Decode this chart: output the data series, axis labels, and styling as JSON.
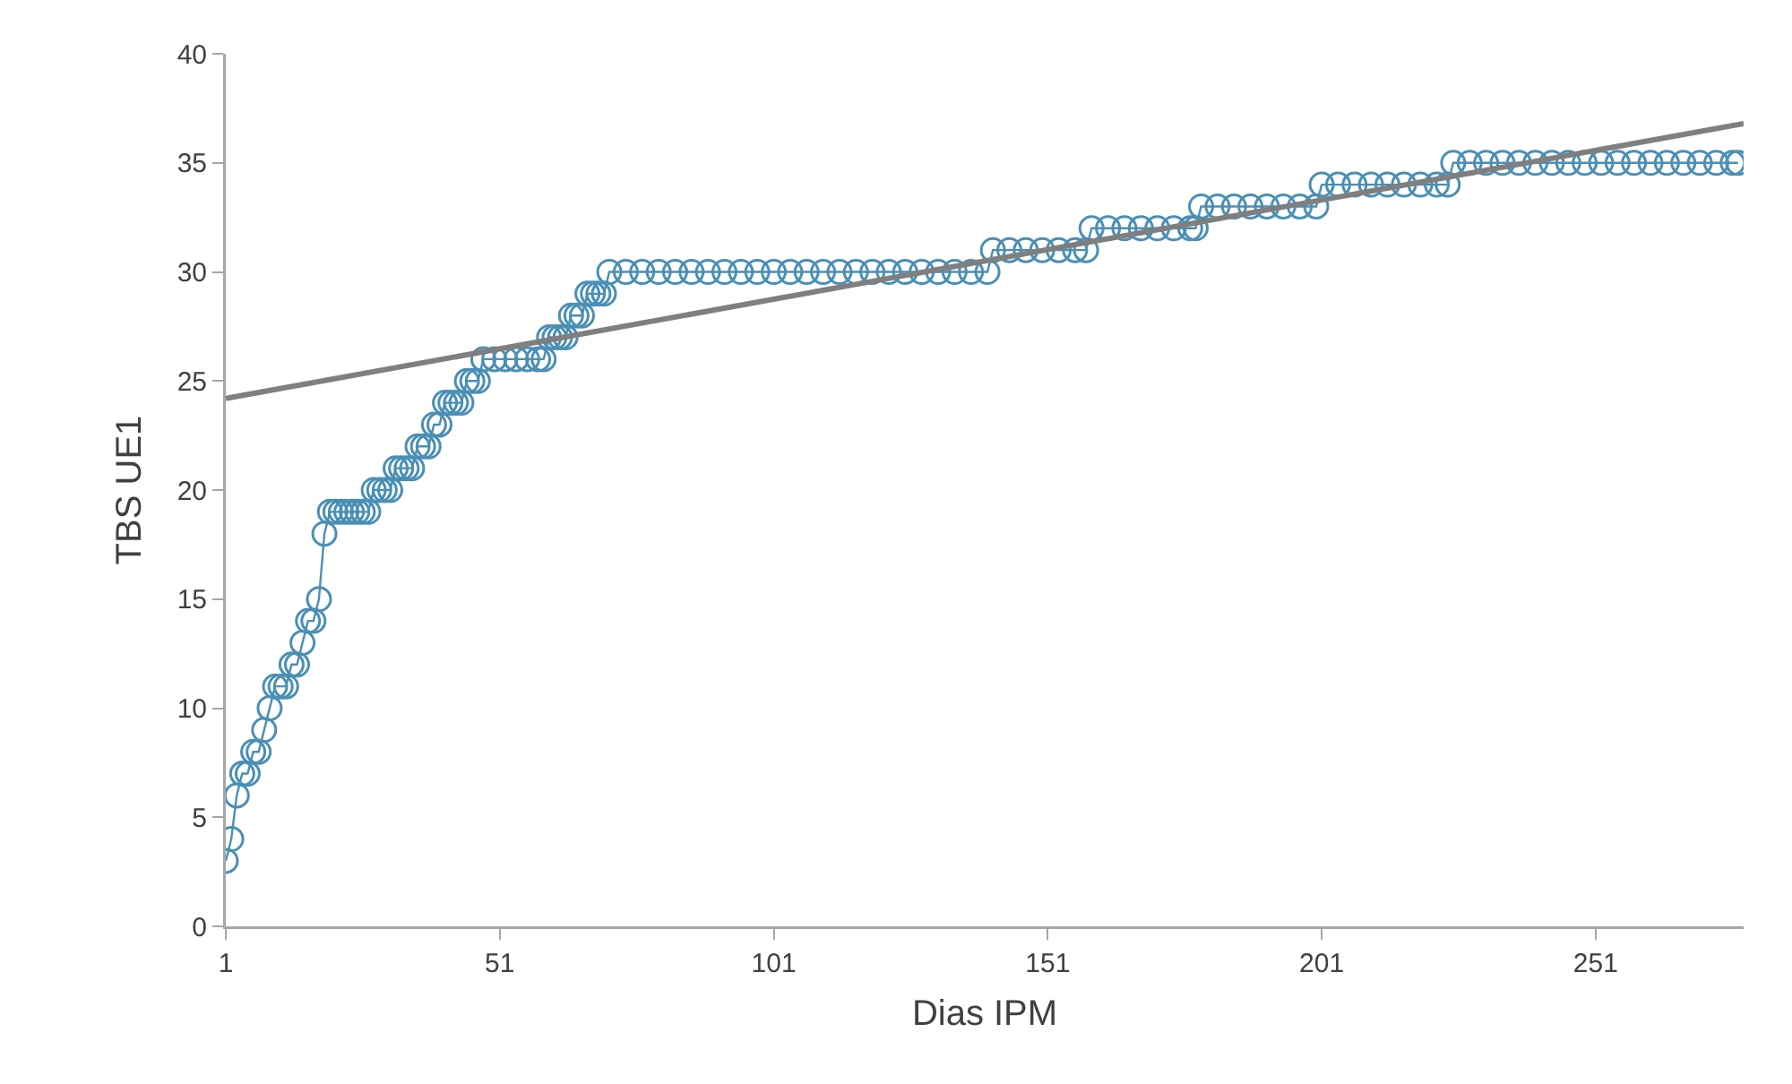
{
  "chart_data": {
    "type": "line",
    "xlabel": "Dias IPM",
    "ylabel": "TBS UE1",
    "xlim": [
      1,
      278
    ],
    "xticks": [
      1,
      51,
      101,
      151,
      201,
      251
    ],
    "ylim": [
      0,
      40
    ],
    "yticks": [
      0,
      5,
      10,
      15,
      20,
      25,
      30,
      35,
      40
    ],
    "grid": false,
    "series": [
      {
        "type": "line",
        "marker": "circle",
        "color": "#4a8fb5",
        "x": [
          1,
          2,
          3,
          4,
          5,
          6,
          7,
          8,
          9,
          10,
          11,
          12,
          13,
          14,
          15,
          16,
          17,
          18,
          19,
          20,
          21,
          22,
          23,
          24,
          25,
          26,
          27,
          28,
          29,
          30,
          31,
          32,
          33,
          34,
          35,
          36,
          37,
          38,
          39,
          40,
          41,
          42,
          43,
          44,
          45,
          46,
          47,
          48,
          50,
          52,
          54,
          56,
          58,
          59,
          60,
          61,
          62,
          63,
          64,
          65,
          66,
          67,
          68,
          69,
          70,
          71,
          74,
          77,
          80,
          83,
          86,
          89,
          92,
          95,
          98,
          101,
          104,
          107,
          110,
          113,
          116,
          119,
          122,
          125,
          128,
          131,
          134,
          137,
          140,
          141,
          144,
          147,
          150,
          153,
          156,
          158,
          159,
          162,
          165,
          168,
          171,
          174,
          177,
          178,
          179,
          182,
          185,
          188,
          191,
          194,
          197,
          200,
          201,
          204,
          207,
          210,
          213,
          216,
          219,
          222,
          224,
          225,
          228,
          231,
          234,
          237,
          240,
          243,
          246,
          249,
          252,
          255,
          258,
          261,
          264,
          267,
          270,
          273,
          276,
          277
        ],
        "values": [
          3,
          4,
          6,
          7,
          7,
          8,
          8,
          9,
          10,
          11,
          11,
          11,
          12,
          12,
          13,
          14,
          14,
          15,
          18,
          19,
          19,
          19,
          19,
          19,
          19,
          19,
          19,
          20,
          20,
          20,
          20,
          21,
          21,
          21,
          21,
          22,
          22,
          22,
          23,
          23,
          24,
          24,
          24,
          24,
          25,
          25,
          25,
          26,
          26,
          26,
          26,
          26,
          26,
          26,
          27,
          27,
          27,
          27,
          28,
          28,
          28,
          29,
          29,
          29,
          29,
          30,
          30,
          30,
          30,
          30,
          30,
          30,
          30,
          30,
          30,
          30,
          30,
          30,
          30,
          30,
          30,
          30,
          30,
          30,
          30,
          30,
          30,
          30,
          30,
          31,
          31,
          31,
          31,
          31,
          31,
          31,
          32,
          32,
          32,
          32,
          32,
          32,
          32,
          32,
          33,
          33,
          33,
          33,
          33,
          33,
          33,
          33,
          34,
          34,
          34,
          34,
          34,
          34,
          34,
          34,
          34,
          35,
          35,
          35,
          35,
          35,
          35,
          35,
          35,
          35,
          35,
          35,
          35,
          35,
          35,
          35,
          35,
          35,
          35,
          35
        ]
      },
      {
        "type": "line",
        "marker": "none",
        "color": "#7f7f7f",
        "x": [
          1,
          278
        ],
        "values": [
          24.2,
          36.8
        ]
      }
    ]
  }
}
